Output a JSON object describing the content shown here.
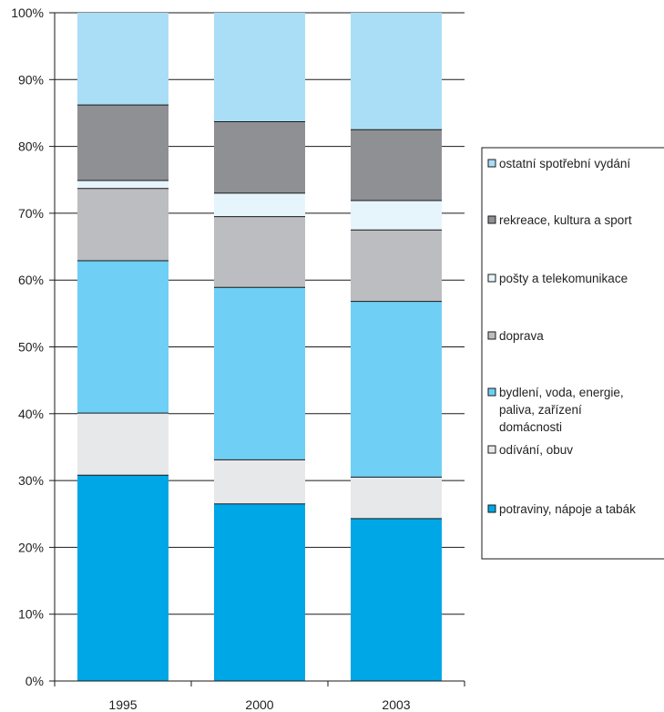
{
  "chart_data": {
    "type": "bar",
    "stacked": true,
    "percent": true,
    "categories": [
      "1995",
      "2000",
      "2003"
    ],
    "series": [
      {
        "name": "potraviny, nápoje a tabák",
        "color": "#00a7e6",
        "values": [
          30.8,
          26.5,
          24.3
        ]
      },
      {
        "name": "odívání, obuv",
        "color": "#e7e8ea",
        "values": [
          9.3,
          6.6,
          6.2
        ]
      },
      {
        "name": "bydlení, voda, energie, paliva, zařízení domácnosti",
        "color": "#6fcff4",
        "values": [
          22.8,
          25.8,
          26.3
        ]
      },
      {
        "name": "doprava",
        "color": "#bcbdc0",
        "values": [
          10.8,
          10.6,
          10.7
        ]
      },
      {
        "name": "pošty a telekomunikace",
        "color": "#e6f5fc",
        "values": [
          1.2,
          3.5,
          4.4
        ]
      },
      {
        "name": "rekreace, kultura a sport",
        "color": "#8f9094",
        "values": [
          11.3,
          10.7,
          10.6
        ]
      },
      {
        "name": "ostatní spotřební vydání",
        "color": "#a9def6",
        "values": [
          13.8,
          16.3,
          17.5
        ]
      }
    ],
    "ylim": [
      0,
      100
    ],
    "yticks": [
      "0%",
      "10%",
      "20%",
      "30%",
      "40%",
      "50%",
      "60%",
      "70%",
      "80%",
      "90%",
      "100%"
    ],
    "grid": true,
    "legend_position": "right",
    "legend_order": [
      "ostatní spotřební vydání",
      "rekreace, kultura a sport",
      "pošty a telekomunikace",
      "doprava",
      "bydlení, voda, energie, paliva, zařízení domácnosti",
      "odívání, obuv",
      "potraviny, nápoje a tabák"
    ]
  }
}
